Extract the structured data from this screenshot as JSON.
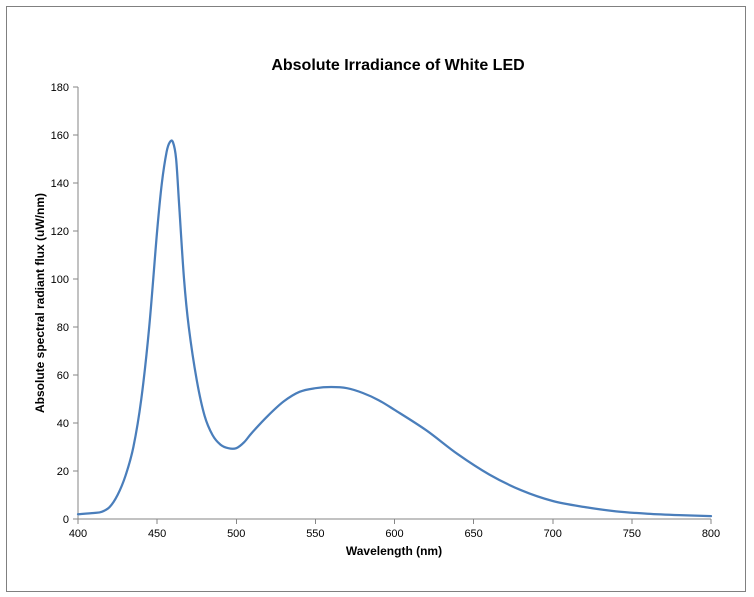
{
  "chart_data": {
    "type": "line",
    "title": "Absolute Irradiance of White LED",
    "xlabel": "Wavelength (nm)",
    "ylabel": "Absolute spectral radiant flux (uW/nm)",
    "xlim": [
      400,
      800
    ],
    "ylim": [
      0,
      180
    ],
    "xticks": [
      400,
      450,
      500,
      550,
      600,
      650,
      700,
      750,
      800
    ],
    "yticks": [
      0,
      20,
      40,
      60,
      80,
      100,
      120,
      140,
      160,
      180
    ],
    "grid": false,
    "legend": "none",
    "series": [
      {
        "color": "#4a7ebb",
        "x": [
          400,
          410,
          415,
          420,
          425,
          430,
          435,
          440,
          445,
          450,
          453,
          456,
          458,
          460,
          462,
          464,
          467,
          470,
          475,
          480,
          485,
          490,
          495,
          500,
          505,
          510,
          520,
          530,
          540,
          550,
          560,
          570,
          580,
          590,
          600,
          620,
          640,
          660,
          680,
          700,
          720,
          740,
          760,
          780,
          800
        ],
        "y": [
          2,
          2.5,
          3,
          5,
          10,
          18,
          30,
          50,
          80,
          120,
          140,
          153,
          157,
          157,
          150,
          130,
          100,
          80,
          58,
          43,
          35,
          31,
          29.5,
          29.5,
          32,
          36,
          43,
          49,
          53,
          54.5,
          55,
          54.5,
          52.5,
          49.5,
          45.5,
          37,
          27,
          18.5,
          12,
          7.5,
          5,
          3.2,
          2.2,
          1.6,
          1.2
        ]
      }
    ]
  }
}
